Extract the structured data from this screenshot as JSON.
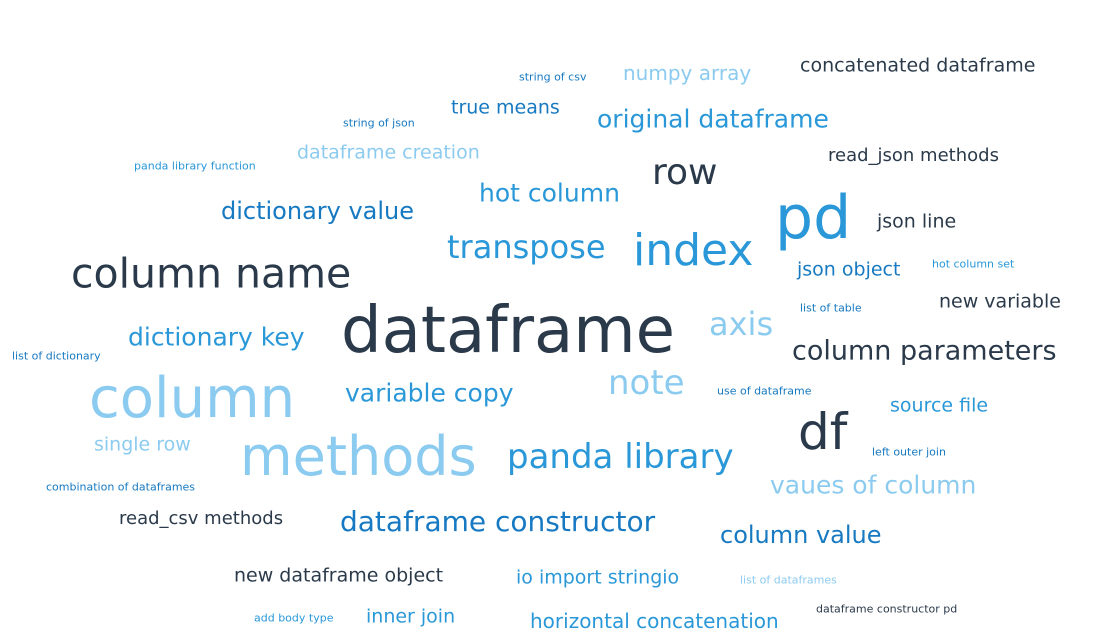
{
  "colors": {
    "dark": "#2b3a4a",
    "blue": "#1779c1",
    "mid_blue": "#2a98d8",
    "light_blue": "#8ccbf0"
  },
  "words": [
    {
      "text": "string of csv",
      "color": "blue"
    },
    {
      "text": "numpy array",
      "color": "light_blue"
    },
    {
      "text": "concatenated dataframe",
      "color": "dark"
    },
    {
      "text": "true means",
      "color": "blue"
    },
    {
      "text": "original dataframe",
      "color": "mid_blue"
    },
    {
      "text": "string of json",
      "color": "blue"
    },
    {
      "text": "panda library function",
      "color": "mid_blue"
    },
    {
      "text": "dataframe creation",
      "color": "light_blue"
    },
    {
      "text": "read_json methods",
      "color": "dark"
    },
    {
      "text": "row",
      "color": "dark"
    },
    {
      "text": "hot column",
      "color": "mid_blue"
    },
    {
      "text": "pd",
      "color": "mid_blue"
    },
    {
      "text": "dictionary value",
      "color": "blue"
    },
    {
      "text": "json line",
      "color": "dark"
    },
    {
      "text": "transpose",
      "color": "mid_blue"
    },
    {
      "text": "index",
      "color": "mid_blue"
    },
    {
      "text": "column name",
      "color": "dark"
    },
    {
      "text": "json object",
      "color": "blue"
    },
    {
      "text": "hot column set",
      "color": "mid_blue"
    },
    {
      "text": "list of table",
      "color": "blue"
    },
    {
      "text": "new variable",
      "color": "dark"
    },
    {
      "text": "dataframe",
      "color": "dark"
    },
    {
      "text": "axis",
      "color": "light_blue"
    },
    {
      "text": "dictionary key",
      "color": "mid_blue"
    },
    {
      "text": "column parameters",
      "color": "dark"
    },
    {
      "text": "list of dictionary",
      "color": "blue"
    },
    {
      "text": "column",
      "color": "light_blue"
    },
    {
      "text": "note",
      "color": "light_blue"
    },
    {
      "text": "variable copy",
      "color": "mid_blue"
    },
    {
      "text": "use of dataframe",
      "color": "blue"
    },
    {
      "text": "source file",
      "color": "mid_blue"
    },
    {
      "text": "df",
      "color": "dark"
    },
    {
      "text": "single row",
      "color": "light_blue"
    },
    {
      "text": "methods",
      "color": "light_blue"
    },
    {
      "text": "panda library",
      "color": "mid_blue"
    },
    {
      "text": "left outer join",
      "color": "blue"
    },
    {
      "text": "vaues of column",
      "color": "light_blue"
    },
    {
      "text": "combination of dataframes",
      "color": "blue"
    },
    {
      "text": "read_csv methods",
      "color": "dark"
    },
    {
      "text": "dataframe constructor",
      "color": "blue"
    },
    {
      "text": "column value",
      "color": "blue"
    },
    {
      "text": "new dataframe object",
      "color": "dark"
    },
    {
      "text": "io import stringio",
      "color": "mid_blue"
    },
    {
      "text": "list of dataframes",
      "color": "light_blue"
    },
    {
      "text": "add body type",
      "color": "mid_blue"
    },
    {
      "text": "inner join",
      "color": "mid_blue"
    },
    {
      "text": "horizontal concatenation",
      "color": "mid_blue"
    },
    {
      "text": "dataframe constructor pd",
      "color": "dark"
    }
  ]
}
